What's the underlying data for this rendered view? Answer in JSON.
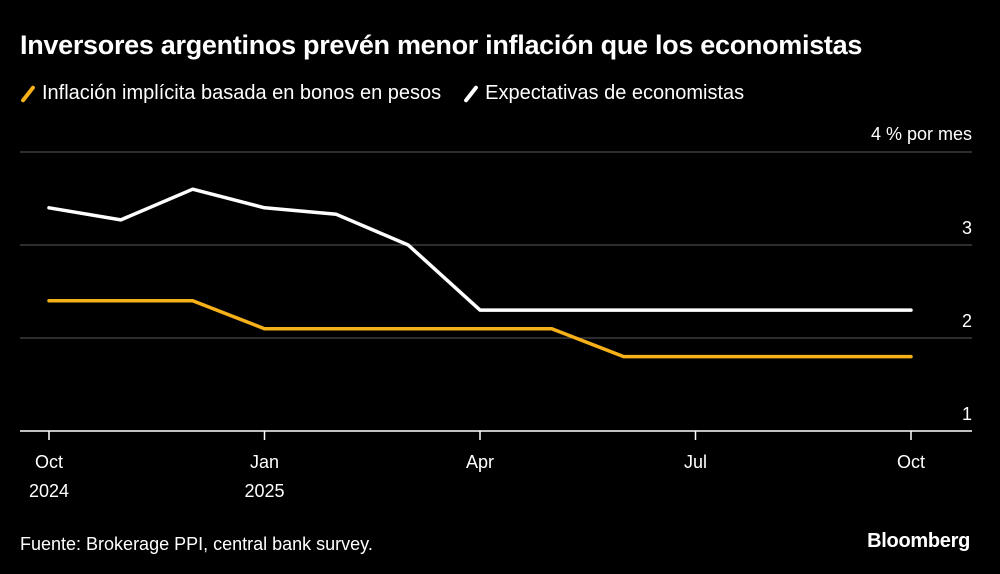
{
  "chart_data": {
    "type": "line",
    "title": "Inversores argentinos prevén menor inflación que los economistas",
    "y_unit_label": "4 % por mes",
    "ylim": [
      1,
      4
    ],
    "y_ticks": [
      1,
      2,
      3,
      4
    ],
    "y_tick_labels": [
      "1",
      "2",
      "3",
      ""
    ],
    "x_ticks": [
      {
        "date": "2024-10",
        "label": "Oct",
        "sublabel": "2024"
      },
      {
        "date": "2025-01",
        "label": "Jan",
        "sublabel": "2025"
      },
      {
        "date": "2025-04",
        "label": "Apr",
        "sublabel": ""
      },
      {
        "date": "2025-07",
        "label": "Jul",
        "sublabel": ""
      },
      {
        "date": "2025-10",
        "label": "Oct",
        "sublabel": ""
      }
    ],
    "x": [
      "2024-10",
      "2024-11",
      "2024-12",
      "2025-01",
      "2025-02",
      "2025-03",
      "2025-04",
      "2025-05",
      "2025-06",
      "2025-07",
      "2025-08",
      "2025-09",
      "2025-10"
    ],
    "series": [
      {
        "name": "Inflación implícita basada en bonos en pesos",
        "color": "#f6b11a",
        "points": [
          {
            "x": "2024-10",
            "y": 2.4
          },
          {
            "x": "2024-12",
            "y": 2.4
          },
          {
            "x": "2025-01",
            "y": 2.1
          },
          {
            "x": "2025-05",
            "y": 2.1
          },
          {
            "x": "2025-06",
            "y": 1.8
          },
          {
            "x": "2025-10",
            "y": 1.8
          }
        ]
      },
      {
        "name": "Expectativas de economistas",
        "color": "#ffffff",
        "points": [
          {
            "x": "2024-10",
            "y": 3.4
          },
          {
            "x": "2024-11",
            "y": 3.27
          },
          {
            "x": "2024-12",
            "y": 3.6
          },
          {
            "x": "2025-01",
            "y": 3.4
          },
          {
            "x": "2025-02",
            "y": 3.33
          },
          {
            "x": "2025-03",
            "y": 3.0
          },
          {
            "x": "2025-04",
            "y": 2.3
          },
          {
            "x": "2025-10",
            "y": 2.3
          }
        ]
      }
    ],
    "grid": true,
    "legend_position": "top-left"
  },
  "footer": {
    "source": "Fuente: Brokerage PPI, central bank survey.",
    "brand": "Bloomberg"
  }
}
